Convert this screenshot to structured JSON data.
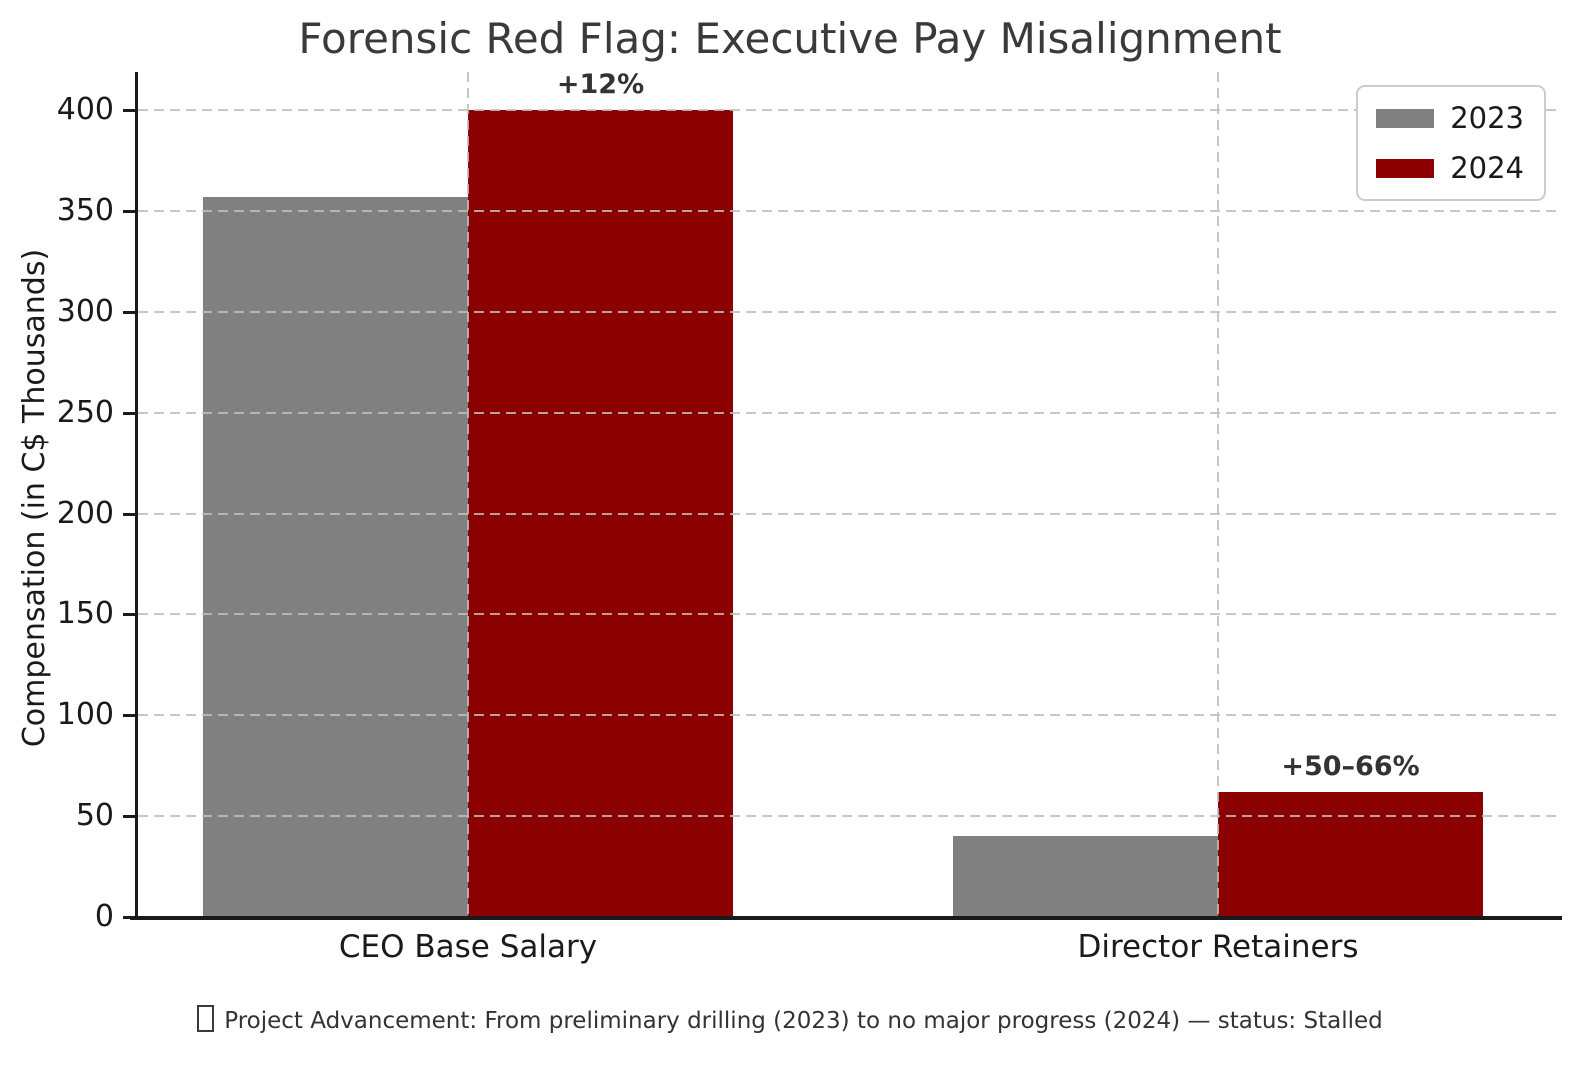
{
  "chart_data": {
    "type": "bar",
    "title": "Forensic Red Flag: Executive Pay Misalignment",
    "xlabel": "",
    "ylabel": "Compensation (in C$ Thousands)",
    "categories": [
      "CEO Base Salary",
      "Director Retainers"
    ],
    "series": [
      {
        "name": "2023",
        "color": "#808080",
        "values": [
          357,
          40
        ]
      },
      {
        "name": "2024",
        "color": "#8B0000",
        "values": [
          400,
          62
        ]
      }
    ],
    "annotations": [
      {
        "category": "CEO Base Salary",
        "above_series": "2024",
        "text": "+12%"
      },
      {
        "category": "Director Retainers",
        "above_series": "2024",
        "text": "+50–66%"
      }
    ],
    "yticks": [
      0,
      50,
      100,
      150,
      200,
      250,
      300,
      350,
      400
    ],
    "ylim": [
      0,
      419
    ],
    "grid": "dashed horizontal lines at yticks and dashed vertical lines at category centers, drawn over bars",
    "legend_position": "upper right",
    "legend_labels": [
      "2023",
      "2024"
    ]
  },
  "footnote": {
    "icon": "missing-glyph-box",
    "text": "Project Advancement: From preliminary drilling (2023) to no major progress (2024) — status: Stalled"
  }
}
